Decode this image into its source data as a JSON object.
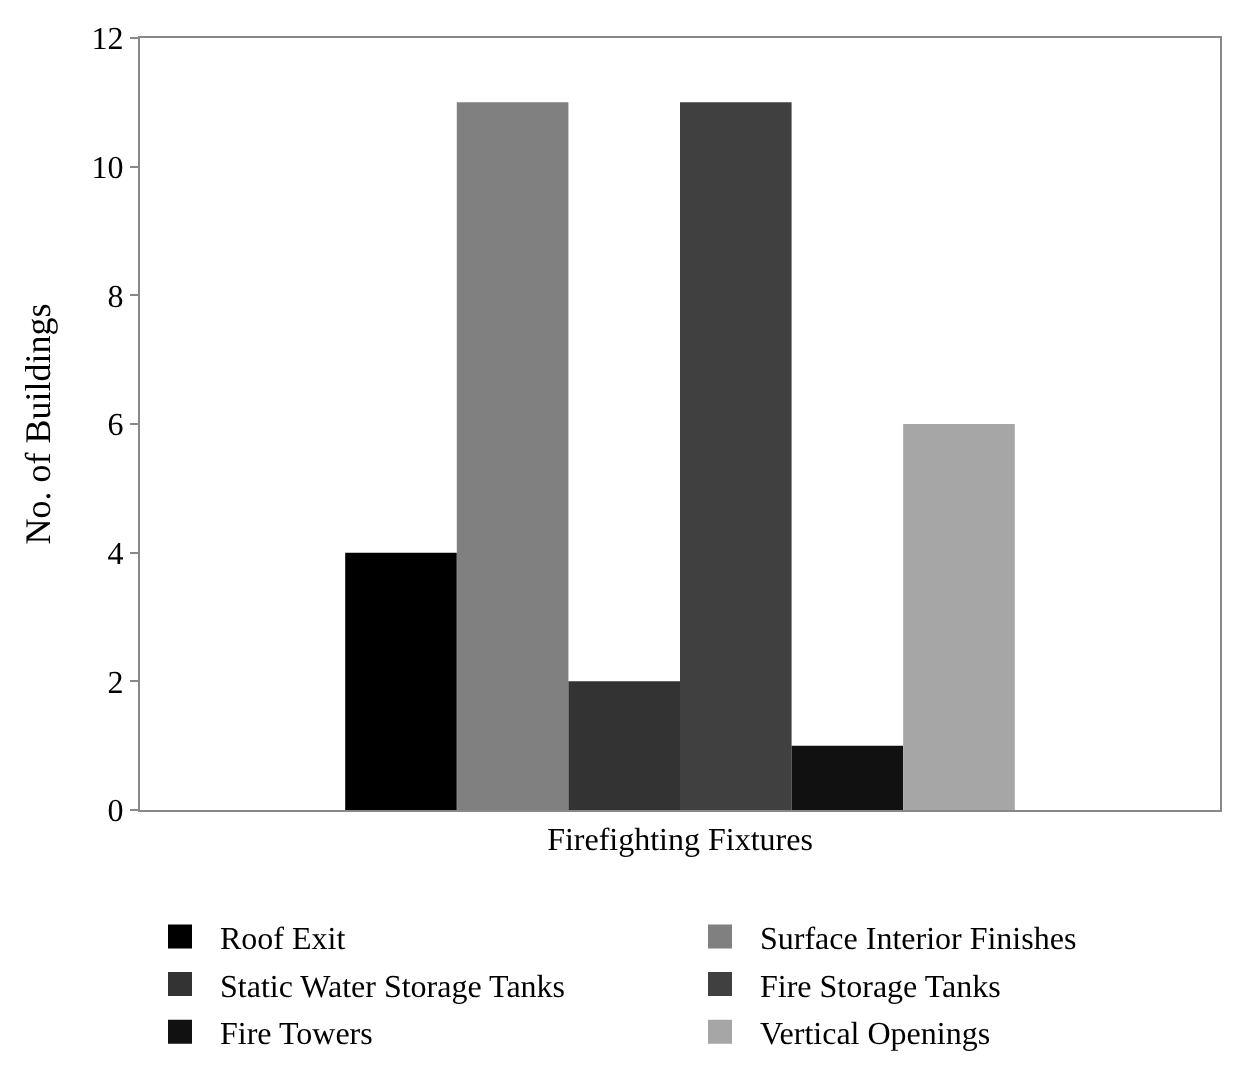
{
  "chart_data": {
    "type": "bar",
    "categories": [
      "Firefighting Fixtures"
    ],
    "ylabel": "No. of Buildings",
    "series": [
      {
        "name": "Roof Exit",
        "color": "#000000",
        "values": [
          4
        ]
      },
      {
        "name": "Surface Interior Finishes",
        "color": "#808080",
        "values": [
          11
        ]
      },
      {
        "name": "Static Water Storage Tanks",
        "color": "#333333",
        "values": [
          2
        ]
      },
      {
        "name": "Fire Storage Tanks",
        "color": "#404040",
        "values": [
          11
        ]
      },
      {
        "name": "Fire Towers",
        "color": "#111111",
        "values": [
          1
        ]
      },
      {
        "name": "Vertical Openings",
        "color": "#a6a6a6",
        "values": [
          6
        ]
      }
    ],
    "ylim": [
      0,
      12
    ],
    "yticks": [
      0,
      2,
      4,
      6,
      8,
      10,
      12
    ],
    "grid": false,
    "legend": "bottom"
  }
}
